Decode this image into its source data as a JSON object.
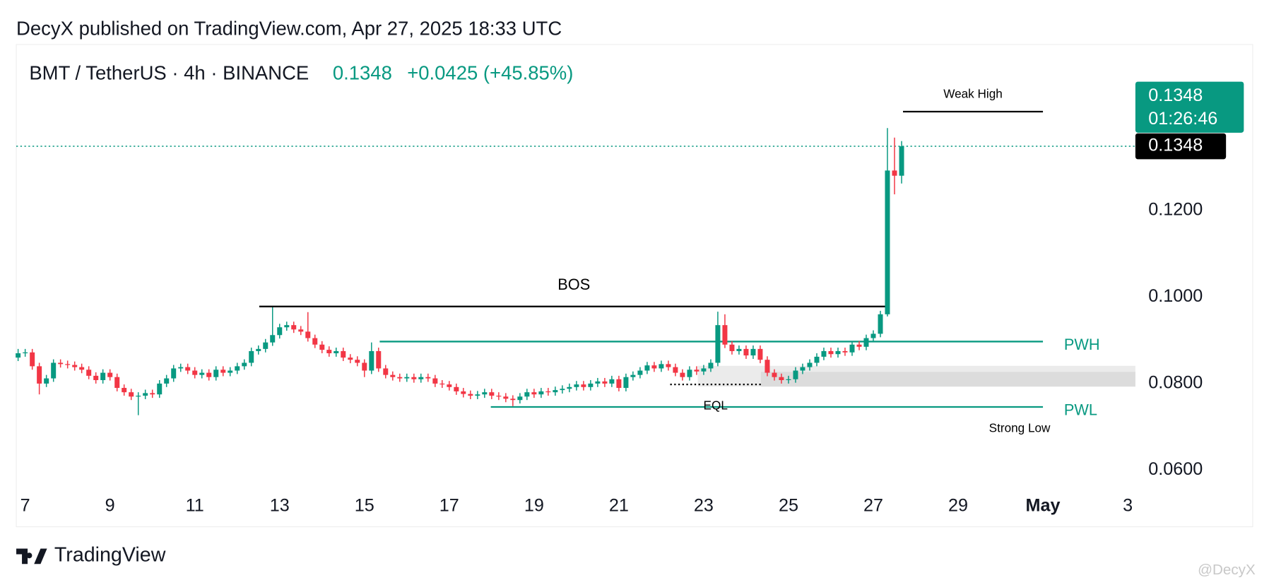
{
  "chart_data": {
    "type": "candlestick",
    "publisher": "DecyX published on TradingView.com, Apr 27, 2025 18:33 UTC",
    "title": "BMT / TetherUS · 4h · BINANCE",
    "last_price": 0.1348,
    "change": "+0.0425 (+45.85%)",
    "countdown": "01:26:46",
    "brand": "TradingView",
    "watermark": "@DecyX",
    "up_color": "#089981",
    "down_color": "#f23645",
    "xlim": [
      6.79,
      33.18
    ],
    "xticks": [
      7,
      9,
      11,
      13,
      15,
      17,
      19,
      21,
      23,
      25,
      27,
      29,
      {
        "value": 31,
        "label": "May"
      },
      {
        "value": 33,
        "label": "3"
      }
    ],
    "ylim": [
      0.0546,
      0.1583
    ],
    "yticks": [
      {
        "value": 0.06,
        "label": "0.0600"
      },
      {
        "value": 0.08,
        "label": "0.0800"
      },
      {
        "value": 0.1,
        "label": "0.1000"
      },
      {
        "value": 0.12,
        "label": "0.1200"
      }
    ],
    "x": [
      6.833,
      7,
      7.167,
      7.333,
      7.5,
      7.667,
      7.833,
      8,
      8.167,
      8.333,
      8.5,
      8.667,
      8.833,
      9,
      9.167,
      9.333,
      9.5,
      9.667,
      9.833,
      10,
      10.167,
      10.333,
      10.5,
      10.667,
      10.833,
      11,
      11.167,
      11.333,
      11.5,
      11.667,
      11.833,
      12,
      12.167,
      12.333,
      12.5,
      12.667,
      12.833,
      13,
      13.167,
      13.333,
      13.5,
      13.667,
      13.833,
      14,
      14.167,
      14.333,
      14.5,
      14.667,
      14.833,
      15,
      15.167,
      15.333,
      15.5,
      15.667,
      15.833,
      16,
      16.167,
      16.333,
      16.5,
      16.667,
      16.833,
      17,
      17.167,
      17.333,
      17.5,
      17.667,
      17.833,
      18,
      18.167,
      18.333,
      18.5,
      18.667,
      18.833,
      19,
      19.167,
      19.333,
      19.5,
      19.667,
      19.833,
      20,
      20.167,
      20.333,
      20.5,
      20.667,
      20.833,
      21,
      21.167,
      21.333,
      21.5,
      21.667,
      21.833,
      22,
      22.167,
      22.333,
      22.5,
      22.667,
      22.833,
      23,
      23.167,
      23.333,
      23.5,
      23.667,
      23.833,
      24,
      24.167,
      24.333,
      24.5,
      24.667,
      24.833,
      25,
      25.167,
      25.333,
      25.5,
      25.667,
      25.833,
      26,
      26.167,
      26.333,
      26.5,
      26.667,
      26.833,
      27,
      27.167,
      27.333,
      27.5,
      27.667
    ],
    "open": [
      0.086,
      0.087,
      0.0872,
      0.084,
      0.08,
      0.0812,
      0.0848,
      0.0845,
      0.0843,
      0.0838,
      0.0832,
      0.0818,
      0.0808,
      0.0825,
      0.0815,
      0.079,
      0.078,
      0.077,
      0.0772,
      0.0778,
      0.0775,
      0.08,
      0.0812,
      0.0835,
      0.0838,
      0.083,
      0.082,
      0.0825,
      0.0815,
      0.0832,
      0.0825,
      0.083,
      0.084,
      0.0848,
      0.0875,
      0.088,
      0.0895,
      0.0912,
      0.093,
      0.0935,
      0.0925,
      0.092,
      0.0905,
      0.089,
      0.0878,
      0.087,
      0.0875,
      0.086,
      0.0855,
      0.0848,
      0.083,
      0.0875,
      0.0835,
      0.082,
      0.0815,
      0.0812,
      0.0815,
      0.081,
      0.0815,
      0.0812,
      0.08,
      0.0798,
      0.0792,
      0.0782,
      0.0776,
      0.0772,
      0.0775,
      0.078,
      0.0772,
      0.077,
      0.0765,
      0.0762,
      0.077,
      0.078,
      0.0775,
      0.0782,
      0.078,
      0.0785,
      0.0788,
      0.0792,
      0.0798,
      0.0792,
      0.08,
      0.0805,
      0.08,
      0.081,
      0.079,
      0.0815,
      0.082,
      0.083,
      0.0842,
      0.0835,
      0.0845,
      0.0838,
      0.0825,
      0.0815,
      0.0832,
      0.0828,
      0.0835,
      0.0848,
      0.0935,
      0.089,
      0.0875,
      0.088,
      0.0865,
      0.088,
      0.0855,
      0.0825,
      0.0815,
      0.0808,
      0.081,
      0.083,
      0.0838,
      0.0848,
      0.0862,
      0.0875,
      0.0868,
      0.0875,
      0.0872,
      0.089,
      0.0885,
      0.0905,
      0.0915,
      0.096,
      0.1292,
      0.128
    ],
    "high": [
      0.088,
      0.088,
      0.088,
      0.0848,
      0.082,
      0.0856,
      0.0856,
      0.0853,
      0.0851,
      0.0846,
      0.084,
      0.0826,
      0.0833,
      0.0833,
      0.0823,
      0.0798,
      0.0788,
      0.078,
      0.0786,
      0.0786,
      0.0808,
      0.082,
      0.0843,
      0.0846,
      0.0846,
      0.0838,
      0.0833,
      0.0833,
      0.084,
      0.084,
      0.0838,
      0.0848,
      0.0856,
      0.0883,
      0.0888,
      0.0903,
      0.0976,
      0.0938,
      0.0943,
      0.0943,
      0.0933,
      0.0965,
      0.0913,
      0.0898,
      0.0886,
      0.0883,
      0.0883,
      0.0868,
      0.0863,
      0.0856,
      0.0895,
      0.0883,
      0.0843,
      0.0828,
      0.0823,
      0.0823,
      0.0823,
      0.0823,
      0.0823,
      0.082,
      0.0808,
      0.0806,
      0.08,
      0.079,
      0.0784,
      0.0783,
      0.0788,
      0.0788,
      0.078,
      0.0778,
      0.0773,
      0.0778,
      0.0788,
      0.0788,
      0.079,
      0.079,
      0.0793,
      0.0796,
      0.08,
      0.0806,
      0.0806,
      0.0808,
      0.0813,
      0.0813,
      0.0818,
      0.0818,
      0.0823,
      0.0828,
      0.0838,
      0.085,
      0.085,
      0.0853,
      0.0853,
      0.0846,
      0.0833,
      0.084,
      0.084,
      0.0843,
      0.0856,
      0.0966,
      0.096,
      0.0898,
      0.0888,
      0.0888,
      0.0888,
      0.0888,
      0.0863,
      0.0833,
      0.0823,
      0.0818,
      0.0838,
      0.0846,
      0.0856,
      0.087,
      0.0883,
      0.0883,
      0.0883,
      0.0883,
      0.0898,
      0.0898,
      0.0913,
      0.0923,
      0.0968,
      0.139,
      0.1368,
      0.136
    ],
    "low": [
      0.0852,
      0.0862,
      0.0832,
      0.0775,
      0.0792,
      0.0804,
      0.0837,
      0.0835,
      0.083,
      0.0824,
      0.081,
      0.08,
      0.08,
      0.0807,
      0.0782,
      0.0772,
      0.0762,
      0.0727,
      0.0764,
      0.0767,
      0.0767,
      0.0792,
      0.0804,
      0.0827,
      0.0822,
      0.0812,
      0.0812,
      0.0807,
      0.0807,
      0.0817,
      0.0817,
      0.0822,
      0.0832,
      0.084,
      0.0867,
      0.0872,
      0.0887,
      0.0904,
      0.0922,
      0.0917,
      0.0912,
      0.0897,
      0.0882,
      0.087,
      0.0862,
      0.0862,
      0.0852,
      0.0847,
      0.084,
      0.0815,
      0.0822,
      0.0827,
      0.0812,
      0.0807,
      0.0804,
      0.0804,
      0.0802,
      0.0802,
      0.0804,
      0.0792,
      0.079,
      0.0784,
      0.0774,
      0.0768,
      0.0764,
      0.0764,
      0.0767,
      0.0764,
      0.0762,
      0.0757,
      0.0748,
      0.0754,
      0.0762,
      0.0767,
      0.0767,
      0.0772,
      0.0772,
      0.0777,
      0.078,
      0.0784,
      0.0784,
      0.0784,
      0.0792,
      0.0792,
      0.0792,
      0.0782,
      0.0782,
      0.0807,
      0.0812,
      0.0822,
      0.0827,
      0.0827,
      0.083,
      0.0817,
      0.0807,
      0.0807,
      0.082,
      0.082,
      0.0827,
      0.084,
      0.0882,
      0.0867,
      0.0867,
      0.0857,
      0.0857,
      0.0847,
      0.0817,
      0.0807,
      0.08,
      0.08,
      0.0802,
      0.0822,
      0.083,
      0.084,
      0.0854,
      0.086,
      0.086,
      0.0864,
      0.0864,
      0.0877,
      0.0877,
      0.0897,
      0.0907,
      0.0955,
      0.1237,
      0.1262
    ],
    "close": [
      0.087,
      0.0872,
      0.084,
      0.08,
      0.0812,
      0.0848,
      0.0845,
      0.0843,
      0.0838,
      0.0832,
      0.0818,
      0.0808,
      0.0825,
      0.0815,
      0.079,
      0.078,
      0.077,
      0.0772,
      0.0778,
      0.0775,
      0.08,
      0.0812,
      0.0835,
      0.0838,
      0.083,
      0.082,
      0.0825,
      0.0815,
      0.0832,
      0.0825,
      0.083,
      0.084,
      0.0848,
      0.0875,
      0.088,
      0.0895,
      0.0912,
      0.093,
      0.0935,
      0.0925,
      0.092,
      0.0905,
      0.089,
      0.0878,
      0.087,
      0.0875,
      0.086,
      0.0855,
      0.0848,
      0.083,
      0.0875,
      0.0835,
      0.082,
      0.0815,
      0.0812,
      0.0815,
      0.081,
      0.0815,
      0.0812,
      0.08,
      0.0798,
      0.0792,
      0.0782,
      0.0776,
      0.0772,
      0.0775,
      0.078,
      0.0772,
      0.077,
      0.0765,
      0.0762,
      0.077,
      0.078,
      0.0775,
      0.0782,
      0.078,
      0.0785,
      0.0788,
      0.0792,
      0.0798,
      0.0792,
      0.08,
      0.0805,
      0.08,
      0.081,
      0.079,
      0.0815,
      0.082,
      0.083,
      0.0842,
      0.0835,
      0.0845,
      0.0838,
      0.0825,
      0.0815,
      0.0832,
      0.0828,
      0.0835,
      0.0848,
      0.0935,
      0.089,
      0.0875,
      0.088,
      0.0865,
      0.088,
      0.0855,
      0.0825,
      0.0815,
      0.0808,
      0.081,
      0.083,
      0.0838,
      0.0848,
      0.0862,
      0.0875,
      0.0868,
      0.0875,
      0.0872,
      0.089,
      0.0885,
      0.0905,
      0.0915,
      0.096,
      0.1292,
      0.128,
      0.1348
    ],
    "zones": [
      {
        "range": [
          0.0793,
          0.0841
        ],
        "x": [
          22.86,
          33.18
        ],
        "color": "#ebebeb"
      },
      {
        "range": [
          0.0793,
          0.0827
        ],
        "x": [
          24.35,
          33.18
        ],
        "color": "#dcdcdc"
      }
    ],
    "levels": [
      {
        "label": "BOS",
        "value": 0.0978,
        "x": [
          12.52,
          27.36
        ],
        "color": "#000000",
        "style": "solid",
        "label_pos": "above"
      },
      {
        "label": "Weak High",
        "value": 0.1428,
        "x": [
          27.7,
          31.0
        ],
        "color": "#000000",
        "style": "solid",
        "label_pos": "above"
      },
      {
        "label": "PWH",
        "value": 0.0897,
        "x": [
          15.36,
          31.0
        ],
        "color": "#089981",
        "style": "solid",
        "label_pos": "right"
      },
      {
        "label": "PWL",
        "value": 0.0746,
        "x": [
          17.98,
          31.0
        ],
        "color": "#089981",
        "style": "solid",
        "label_pos": "right"
      },
      {
        "label": "EQL",
        "value": 0.0798,
        "x": [
          22.21,
          24.35
        ],
        "color": "#000000",
        "style": "dotted",
        "label_pos": "below"
      },
      {
        "label": "Strong Low",
        "value": 0.0746,
        "x": [
          29.9,
          31.0
        ],
        "color": "#000000",
        "style": "none",
        "label_pos": "below"
      }
    ]
  }
}
